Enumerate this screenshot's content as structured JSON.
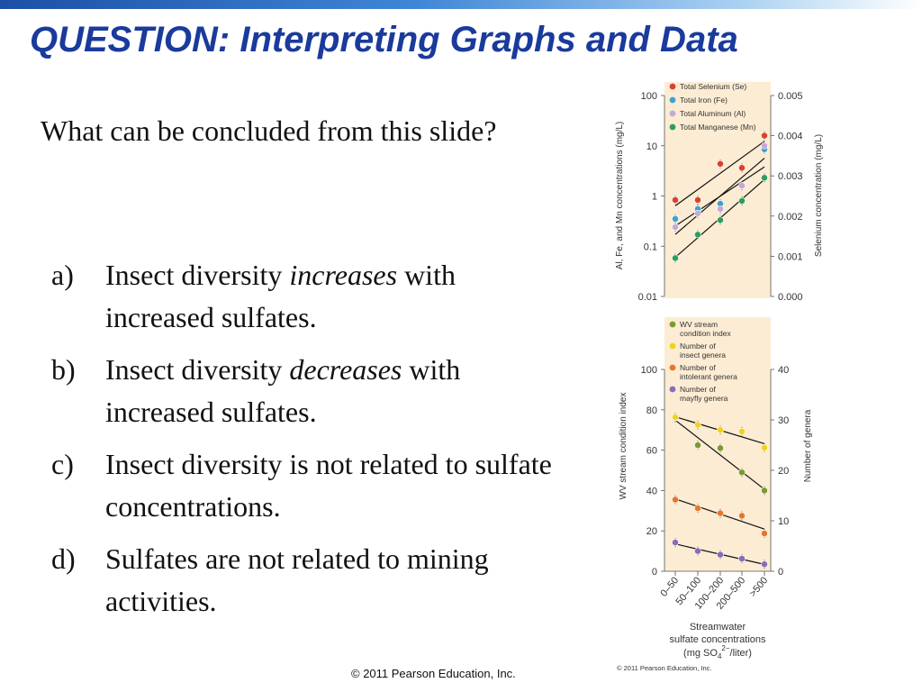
{
  "slide": {
    "title": "QUESTION: Interpreting Graphs and Data",
    "question": "What can be concluded from this slide?",
    "options": [
      {
        "letter": "a)",
        "before": "Insect diversity ",
        "em": "increases",
        "after": " with increased sulfates."
      },
      {
        "letter": "b)",
        "before": "Insect diversity ",
        "em": "decreases",
        "after": " with increased sulfates."
      },
      {
        "letter": "c)",
        "before": "Insect diversity is not related to sulfate concentrations.",
        "em": "",
        "after": ""
      },
      {
        "letter": "d)",
        "before": "Sulfates are not related to mining activities.",
        "em": "",
        "after": ""
      }
    ],
    "footer": "© 2011 Pearson Education, Inc.",
    "figure_credit": "© 2011 Pearson Education, Inc."
  },
  "chart_data": [
    {
      "type": "scatter",
      "panel": "top",
      "log_scale_left": true,
      "categories": [
        "0–50",
        "50–100",
        "100–200",
        "200–500",
        ">500"
      ],
      "ylabel_left": "Al, Fe, and Mn concentrations (mg/L)",
      "ylabel_right": "Selenium concentration (mg/L)",
      "ylim_left": [
        0.01,
        100
      ],
      "ylim_right": [
        0,
        0.005
      ],
      "yticks_left": [
        "100",
        "10",
        "1",
        "0.1",
        "0.01"
      ],
      "yticks_right": [
        "0.005",
        "0.004",
        "0.003",
        "0.002",
        "0.001",
        "0.000"
      ],
      "legend_position": "top-left",
      "series": [
        {
          "name": "Total Selenium (Se)",
          "color": "#d9422b",
          "axis": "right",
          "values": [
            0.0024,
            0.0024,
            0.0033,
            0.0032,
            0.004
          ]
        },
        {
          "name": "Total Iron (Fe)",
          "color": "#3aa3d4",
          "axis": "left",
          "values": [
            0.35,
            0.55,
            0.7,
            0.8,
            8.5
          ]
        },
        {
          "name": "Total Aluminum (Al)",
          "color": "#c7a8d4",
          "axis": "left",
          "values": [
            0.24,
            0.45,
            0.55,
            1.6,
            10
          ]
        },
        {
          "name": "Total Manganese (Mn)",
          "color": "#2e9e5b",
          "axis": "left",
          "values": [
            0.058,
            0.17,
            0.33,
            0.8,
            2.3
          ]
        }
      ]
    },
    {
      "type": "scatter",
      "panel": "bottom",
      "categories": [
        "0–50",
        "50–100",
        "100–200",
        "200–500",
        ">500"
      ],
      "xlabel": "Streamwater sulfate concentrations (mg SO4²⁻/liter)",
      "xlabel_lines": [
        "Streamwater",
        "sulfate concentrations",
        "(mg SO",
        "4",
        "2−",
        "/liter)"
      ],
      "ylabel_left": "WV stream condition index",
      "ylabel_right": "Number of genera",
      "ylim_left": [
        0,
        100
      ],
      "ylim_right": [
        0,
        40
      ],
      "yticks_left": [
        "100",
        "80",
        "60",
        "40",
        "20",
        "0"
      ],
      "yticks_right": [
        "40",
        "30",
        "20",
        "10",
        "0"
      ],
      "legend_position": "top-left",
      "series": [
        {
          "name": "WV stream condition index",
          "color": "#7a9a2e",
          "axis": "left",
          "values": [
            76,
            62.5,
            61,
            49,
            40
          ]
        },
        {
          "name": "Number of insect genera",
          "color": "#f2d21a",
          "axis": "right",
          "values": [
            30.5,
            29,
            28,
            27.7,
            24.5
          ]
        },
        {
          "name": "Number of intolerant genera",
          "color": "#e8762a",
          "axis": "right",
          "values": [
            14.2,
            12.5,
            11.5,
            11,
            7.5
          ]
        },
        {
          "name": "Number of mayfly genera",
          "color": "#8a6bb8",
          "axis": "right",
          "values": [
            5.7,
            4,
            3.3,
            2.5,
            1.4
          ]
        }
      ]
    }
  ]
}
